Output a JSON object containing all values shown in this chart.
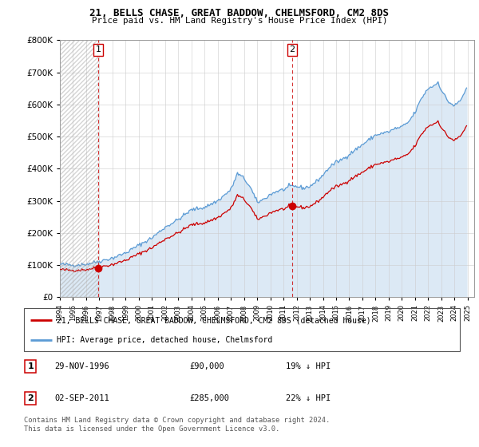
{
  "title1": "21, BELLS CHASE, GREAT BADDOW, CHELMSFORD, CM2 8DS",
  "title2": "Price paid vs. HM Land Registry's House Price Index (HPI)",
  "sale1_value": 90000,
  "sale1_year": 1996.91,
  "sale2_value": 285000,
  "sale2_year": 2011.67,
  "legend_line1": "21, BELLS CHASE, GREAT BADDOW, CHELMSFORD, CM2 8DS (detached house)",
  "legend_line2": "HPI: Average price, detached house, Chelmsford",
  "footnote1": "Contains HM Land Registry data © Crown copyright and database right 2024.",
  "footnote2": "This data is licensed under the Open Government Licence v3.0.",
  "red_line_color": "#cc0000",
  "blue_line_color": "#5b9bd5",
  "blue_fill_color": "#dce9f5",
  "grid_color": "#cccccc",
  "background_color": "#ffffff",
  "ylim_min": 0,
  "ylim_max": 800000,
  "xmin": 1994.0,
  "xmax": 2025.5
}
